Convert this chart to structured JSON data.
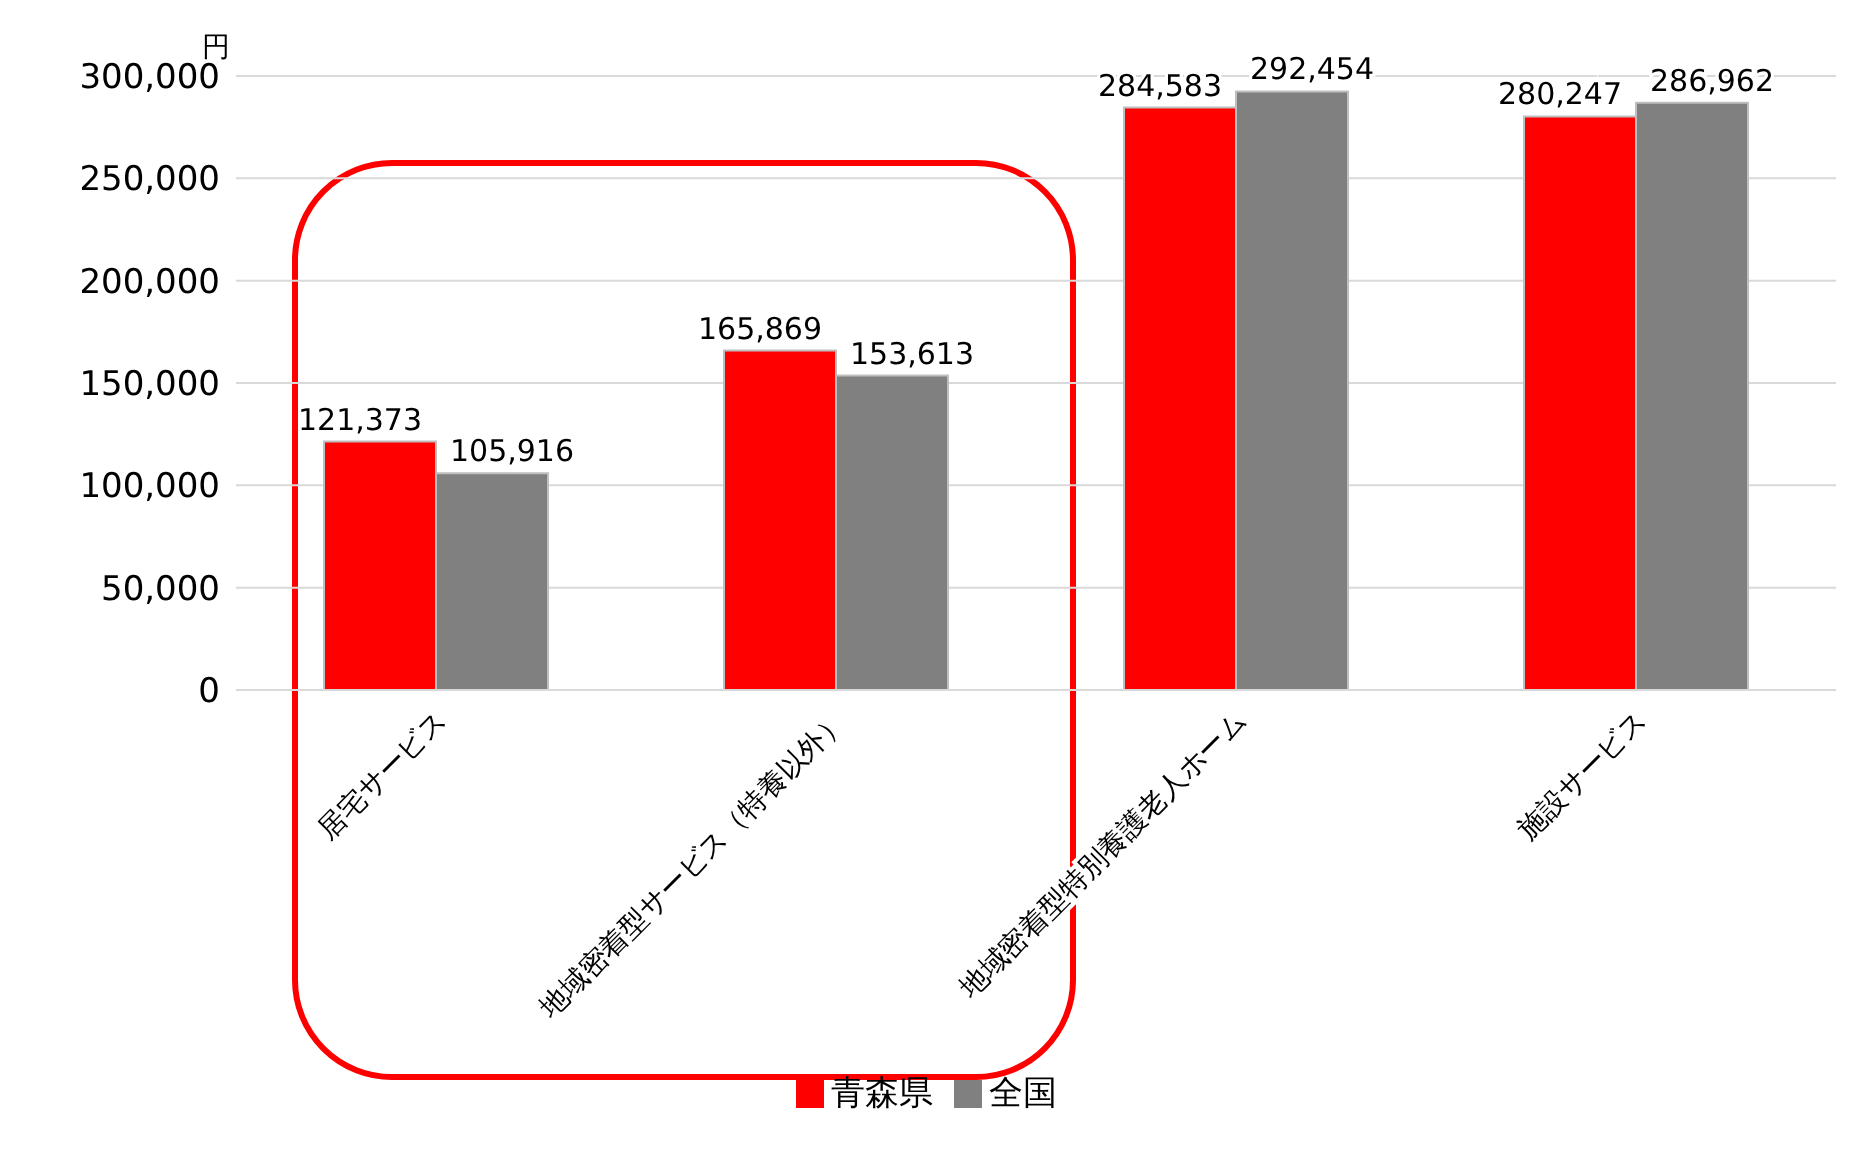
{
  "chart_data": {
    "type": "bar",
    "ylabel": "円",
    "categories": [
      "居宅サービス",
      "地域密着型サービス（特養以外）",
      "地域密着型特別養護老人ホーム",
      "施設サービス"
    ],
    "series": [
      {
        "name": "青森県",
        "color": "#ff0000",
        "values": [
          121373,
          165869,
          284583,
          280247
        ],
        "value_labels": [
          "121,373",
          "165,869",
          "284,583",
          "280,247"
        ]
      },
      {
        "name": "全国",
        "color": "#808080",
        "values": [
          105916,
          153613,
          292454,
          286962
        ],
        "value_labels": [
          "105,916",
          "153,613",
          "292,454",
          "286,962"
        ]
      }
    ],
    "ylim": [
      0,
      300000
    ],
    "yticks": [
      {
        "value": 0,
        "label": "0"
      },
      {
        "value": 50000,
        "label": "50,000"
      },
      {
        "value": 100000,
        "label": "100,000"
      },
      {
        "value": 150000,
        "label": "150,000"
      },
      {
        "value": 200000,
        "label": "200,000"
      },
      {
        "value": 250000,
        "label": "250,000"
      },
      {
        "value": 300000,
        "label": "300,000"
      }
    ],
    "grid": "y",
    "legend": "bottom"
  }
}
